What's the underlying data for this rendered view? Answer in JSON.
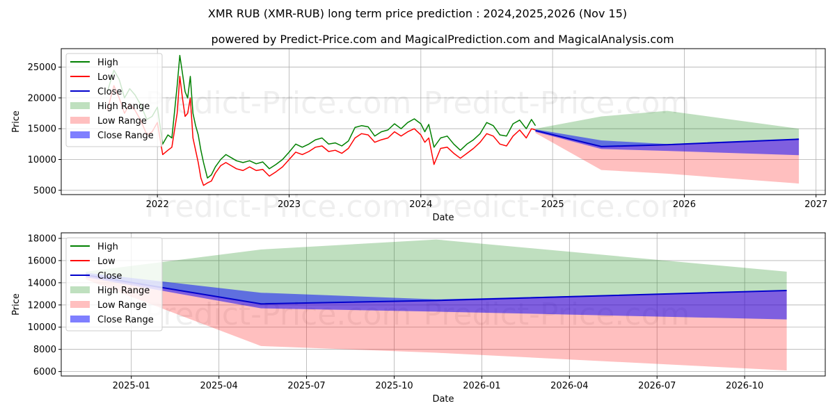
{
  "title": "XMR RUB (XMR-RUB) long term price prediction : 2024,2025,2026 (Nov 15)",
  "subtitle": "powered by Predict-Price.com and MagicalPrediction.com and MagicalAnalysis.com",
  "watermark": "Predict-Price.com",
  "legend": [
    {
      "label": "High",
      "kind": "line",
      "color": "#008000"
    },
    {
      "label": "Low",
      "kind": "line",
      "color": "#ff0000"
    },
    {
      "label": "Close",
      "kind": "line",
      "color": "#0000cc"
    },
    {
      "label": "High Range",
      "kind": "patch",
      "color": "#bfe0bf"
    },
    {
      "label": "Low Range",
      "kind": "patch",
      "color": "#ffbfbf"
    },
    {
      "label": "Close Range",
      "kind": "patch",
      "color": "#7f7fff"
    }
  ],
  "chart_data": [
    {
      "type": "line",
      "name": "history-and-forecast",
      "xlabel": "Date",
      "ylabel": "Price",
      "xlim": [
        2021.27,
        2027.07
      ],
      "ylim": [
        4300,
        28000
      ],
      "xticks": [
        {
          "v": 2022,
          "label": "2022"
        },
        {
          "v": 2023,
          "label": "2023"
        },
        {
          "v": 2024,
          "label": "2024"
        },
        {
          "v": 2025,
          "label": "2025"
        },
        {
          "v": 2026,
          "label": "2026"
        },
        {
          "v": 2027,
          "label": "2027"
        }
      ],
      "yticks": [
        {
          "v": 5000,
          "label": "5000"
        },
        {
          "v": 10000,
          "label": "10000"
        },
        {
          "v": 15000,
          "label": "15000"
        },
        {
          "v": 20000,
          "label": "20000"
        },
        {
          "v": 25000,
          "label": "25000"
        }
      ],
      "history": {
        "x": [
          2021.62,
          2021.67,
          2021.71,
          2021.75,
          2021.79,
          2021.83,
          2021.87,
          2021.92,
          2021.96,
          2022.0,
          2022.04,
          2022.08,
          2022.11,
          2022.15,
          2022.17,
          2022.19,
          2022.21,
          2022.23,
          2022.25,
          2022.27,
          2022.29,
          2022.31,
          2022.33,
          2022.35,
          2022.38,
          2022.41,
          2022.44,
          2022.48,
          2022.52,
          2022.56,
          2022.6,
          2022.65,
          2022.7,
          2022.75,
          2022.8,
          2022.85,
          2022.9,
          2022.95,
          2023.0,
          2023.05,
          2023.1,
          2023.15,
          2023.2,
          2023.25,
          2023.3,
          2023.35,
          2023.4,
          2023.45,
          2023.5,
          2023.55,
          2023.6,
          2023.65,
          2023.7,
          2023.75,
          2023.8,
          2023.85,
          2023.9,
          2023.95,
          2024.0,
          2024.03,
          2024.06,
          2024.1,
          2024.15,
          2024.2,
          2024.25,
          2024.3,
          2024.35,
          2024.4,
          2024.45,
          2024.5,
          2024.55,
          2024.6,
          2024.65,
          2024.7,
          2024.75,
          2024.8,
          2024.84,
          2024.87
        ],
        "high": [
          21000,
          24500,
          23000,
          20000,
          21500,
          20500,
          19000,
          16500,
          17000,
          18500,
          12500,
          14000,
          13500,
          22000,
          26900,
          24000,
          21000,
          20000,
          23500,
          17500,
          15500,
          14000,
          11500,
          9500,
          7000,
          7500,
          8800,
          10000,
          10800,
          10300,
          9800,
          9500,
          9800,
          9300,
          9600,
          8500,
          9200,
          10000,
          11200,
          12500,
          12000,
          12500,
          13200,
          13500,
          12500,
          12700,
          12200,
          13000,
          15200,
          15500,
          15300,
          13800,
          14500,
          14800,
          15800,
          15000,
          16000,
          16600,
          15800,
          14500,
          15700,
          12000,
          13500,
          13800,
          12500,
          11500,
          12500,
          13200,
          14200,
          16000,
          15500,
          14000,
          13800,
          15800,
          16400,
          15000,
          16500,
          15500
        ],
        "low": [
          18000,
          22000,
          20000,
          17500,
          19000,
          18000,
          16500,
          14000,
          14500,
          16000,
          10800,
          11500,
          12000,
          17500,
          23500,
          20000,
          17000,
          17500,
          20000,
          13500,
          11500,
          9500,
          7000,
          5800,
          6200,
          6500,
          7800,
          9000,
          9500,
          9000,
          8500,
          8200,
          8800,
          8200,
          8400,
          7300,
          8000,
          8800,
          10000,
          11200,
          10800,
          11300,
          12000,
          12200,
          11300,
          11500,
          11000,
          11800,
          13500,
          14200,
          14000,
          12800,
          13200,
          13500,
          14500,
          13800,
          14500,
          15000,
          14000,
          12800,
          13500,
          9200,
          11800,
          12000,
          11000,
          10200,
          11000,
          11800,
          12800,
          14200,
          13800,
          12500,
          12200,
          13800,
          14800,
          13500,
          15000,
          14800
        ]
      },
      "forecast": {
        "x": [
          2024.87,
          2025.37,
          2025.87,
          2026.87
        ],
        "close": [
          14700,
          12100,
          12400,
          13300
        ],
        "close_range_hi": [
          14900,
          13100,
          12500,
          13300
        ],
        "close_range_lo": [
          14500,
          11700,
          11400,
          10700
        ],
        "high_range": [
          15000,
          17000,
          17900,
          15000
        ],
        "low_range": [
          14300,
          8300,
          7700,
          6100
        ]
      }
    },
    {
      "type": "area",
      "name": "forecast-zoom",
      "xlabel": "Date",
      "ylabel": "Price",
      "xlim": [
        2024.8,
        2026.98
      ],
      "ylim": [
        5600,
        18500
      ],
      "xticks": [
        {
          "v": 2025.0,
          "label": "2025-01"
        },
        {
          "v": 2025.25,
          "label": "2025-04"
        },
        {
          "v": 2025.5,
          "label": "2025-07"
        },
        {
          "v": 2025.75,
          "label": "2025-10"
        },
        {
          "v": 2026.0,
          "label": "2026-01"
        },
        {
          "v": 2026.25,
          "label": "2026-04"
        },
        {
          "v": 2026.5,
          "label": "2026-07"
        },
        {
          "v": 2026.75,
          "label": "2026-10"
        }
      ],
      "yticks": [
        {
          "v": 6000,
          "label": "6000"
        },
        {
          "v": 8000,
          "label": "8000"
        },
        {
          "v": 10000,
          "label": "10000"
        },
        {
          "v": 12000,
          "label": "12000"
        },
        {
          "v": 14000,
          "label": "14000"
        },
        {
          "v": 16000,
          "label": "16000"
        },
        {
          "v": 18000,
          "label": "18000"
        }
      ],
      "forecast": {
        "x": [
          2024.87,
          2025.37,
          2025.87,
          2026.87
        ],
        "close": [
          14700,
          12100,
          12400,
          13300
        ],
        "close_range_hi": [
          14900,
          13100,
          12500,
          13300
        ],
        "close_range_lo": [
          14500,
          11700,
          11400,
          10700
        ],
        "high_range": [
          15000,
          17000,
          17900,
          15000
        ],
        "low_range": [
          14300,
          8300,
          7700,
          6100
        ]
      }
    }
  ]
}
